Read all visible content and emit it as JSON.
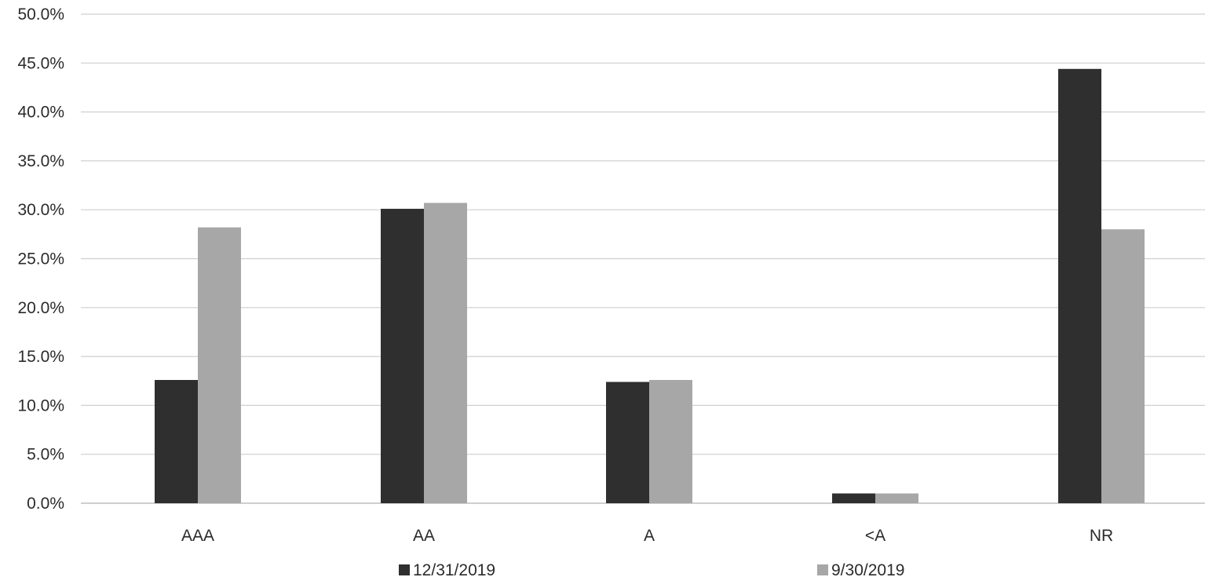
{
  "chart_data": {
    "type": "bar",
    "categories": [
      "AAA",
      "AA",
      "A",
      "<A",
      "NR"
    ],
    "series": [
      {
        "name": "12/31/2019",
        "color": "#2f2f2f",
        "values": [
          12.6,
          30.1,
          12.4,
          1.0,
          44.4
        ]
      },
      {
        "name": "9/30/2019",
        "color": "#a7a7a7",
        "values": [
          28.2,
          30.7,
          12.6,
          1.0,
          28.0
        ]
      }
    ],
    "y_ticks": [
      "0.0%",
      "5.0%",
      "10.0%",
      "15.0%",
      "20.0%",
      "25.0%",
      "30.0%",
      "35.0%",
      "40.0%",
      "45.0%",
      "50.0%"
    ],
    "ylim": [
      0,
      50
    ],
    "y_unit": "%",
    "grid": true,
    "legend_position": "bottom"
  }
}
